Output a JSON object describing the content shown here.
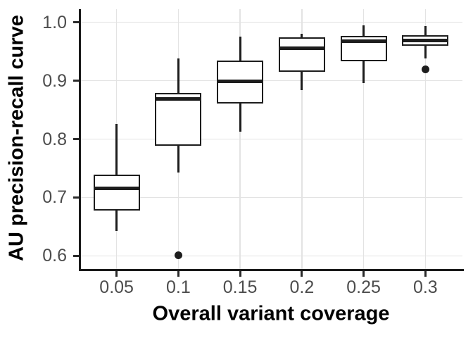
{
  "chart_data": {
    "type": "boxplot",
    "title": "",
    "xlabel": "Overall variant coverage",
    "ylabel": "AU precision-recall curve",
    "categories": [
      "0.05",
      "0.1",
      "0.15",
      "0.2",
      "0.25",
      "0.3"
    ],
    "y_ticks": [
      "0.6",
      "0.7",
      "0.8",
      "0.9",
      "1.0"
    ],
    "ylim": [
      0.6,
      1.0
    ],
    "grid": "major-only",
    "legend": "none",
    "series": [
      {
        "category": "0.05",
        "whisker_low": 0.643,
        "q1": 0.678,
        "median": 0.715,
        "q3": 0.739,
        "whisker_high": 0.826,
        "outliers": []
      },
      {
        "category": "0.1",
        "whisker_low": 0.743,
        "q1": 0.789,
        "median": 0.869,
        "q3": 0.879,
        "whisker_high": 0.938,
        "outliers": [
          0.601
        ]
      },
      {
        "category": "0.15",
        "whisker_low": 0.813,
        "q1": 0.861,
        "median": 0.899,
        "q3": 0.934,
        "whisker_high": 0.975,
        "outliers": []
      },
      {
        "category": "0.2",
        "whisker_low": 0.884,
        "q1": 0.915,
        "median": 0.956,
        "q3": 0.974,
        "whisker_high": 0.98,
        "outliers": []
      },
      {
        "category": "0.25",
        "whisker_low": 0.896,
        "q1": 0.933,
        "median": 0.968,
        "q3": 0.977,
        "whisker_high": 0.995,
        "outliers": []
      },
      {
        "category": "0.3",
        "whisker_low": 0.938,
        "q1": 0.96,
        "median": 0.969,
        "q3": 0.978,
        "whisker_high": 0.994,
        "outliers": [
          0.919
        ]
      }
    ],
    "colors": {
      "background": "#ffffff",
      "box_stroke": "#1d1d1d",
      "box_fill": "#ffffff",
      "median": "#1d1d1d",
      "outlier": "#1d1d1d",
      "grid": "#e3e3e3",
      "axis_line": "#1a1a1a",
      "tick_mark": "#2b2b2b",
      "tick_label": "#4d4d4d",
      "axis_title": "#000000"
    }
  }
}
